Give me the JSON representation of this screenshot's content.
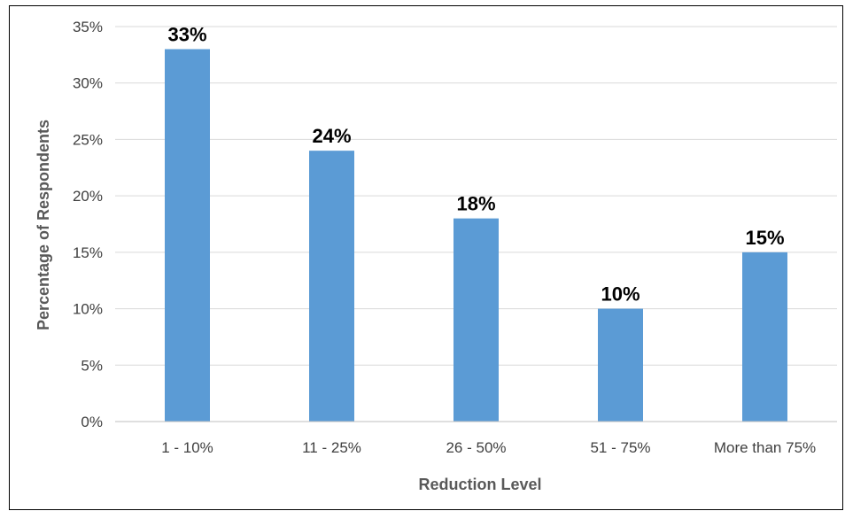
{
  "chart_data": {
    "type": "bar",
    "title": "",
    "xlabel": "Reduction Level",
    "ylabel": "Percentage of Respondents",
    "categories": [
      "1 - 10%",
      "11 - 25%",
      "26 - 50%",
      "51 - 75%",
      "More than 75%"
    ],
    "values": [
      33,
      24,
      18,
      10,
      15
    ],
    "data_labels": [
      "33%",
      "24%",
      "18%",
      "10%",
      "15%"
    ],
    "ylim": [
      0,
      35
    ],
    "yticks": [
      0,
      5,
      10,
      15,
      20,
      25,
      30,
      35
    ],
    "ytick_labels": [
      "0%",
      "5%",
      "10%",
      "15%",
      "20%",
      "25%",
      "30%",
      "35%"
    ],
    "grid": true,
    "legend": "none",
    "colors": {
      "bar": "#5b9bd5",
      "grid": "#d9d9d9",
      "axis": "#bfbfbf"
    }
  }
}
